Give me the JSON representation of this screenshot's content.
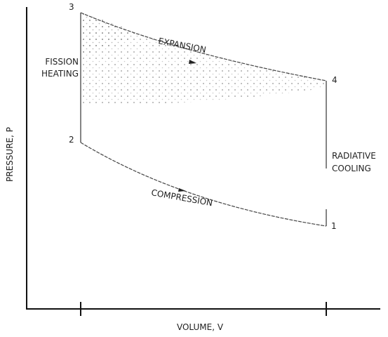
{
  "axes": {
    "y_label": "PRESSURE, P",
    "x_label": "VOLUME, V"
  },
  "points": [
    {
      "label": "1"
    },
    {
      "label": "2"
    },
    {
      "label": "3"
    },
    {
      "label": "4"
    }
  ],
  "processes": {
    "expansion": "EXPANSION",
    "compression": "COMPRESSION",
    "heating": [
      "FISSION",
      "HEATING"
    ],
    "cooling": [
      "RADIATIVE",
      "COOLING"
    ]
  }
}
